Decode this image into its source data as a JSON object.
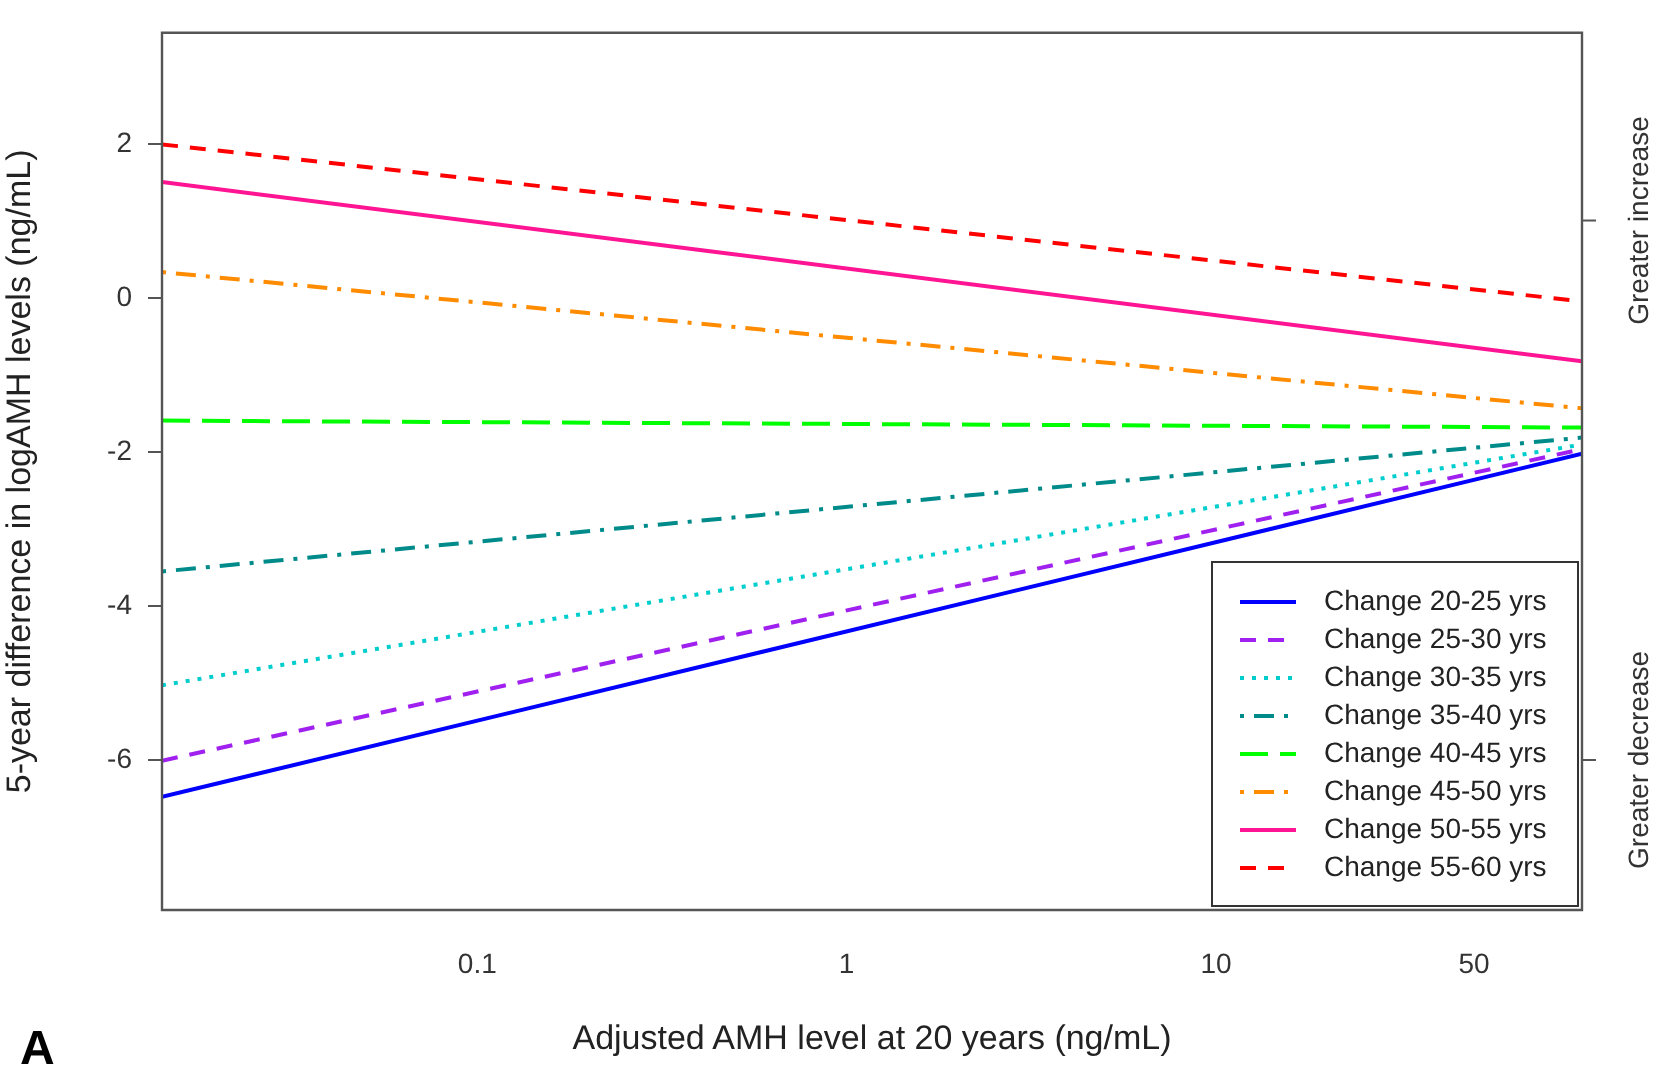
{
  "chart_data": {
    "type": "line",
    "xlabel": "Adjusted AMH level at 20 years (ng/mL)",
    "ylabel": "5-year difference in logAMH levels (ng/mL)",
    "x": [
      0.014,
      98
    ],
    "log": "x",
    "xlim": [
      0.014,
      98
    ],
    "xticks": [
      0.1,
      1,
      10,
      50
    ],
    "ylim": [
      -7.95,
      3.45
    ],
    "yticks": [
      -6,
      -4,
      -2,
      0,
      2
    ],
    "grid": false,
    "legend": "bottom right",
    "marker": "none",
    "series": [
      {
        "name": "Change 20-25 yrs",
        "color": "#0000ff",
        "line_style": "solid",
        "values": [
          -6.48,
          -2.02
        ]
      },
      {
        "name": "Change 25-30 yrs",
        "color": "#a020f0",
        "line_style": "dashed",
        "values": [
          -6.01,
          -1.96
        ]
      },
      {
        "name": "Change 30-35 yrs",
        "color": "#00cdcd",
        "line_style": "dotted",
        "values": [
          -5.03,
          -1.9
        ]
      },
      {
        "name": "Change 35-40 yrs",
        "color": "#008b8b",
        "line_style": "dashdot",
        "values": [
          -3.55,
          -1.81
        ]
      },
      {
        "name": "Change 40-45 yrs",
        "color": "#00ff00",
        "line_style": "longdash",
        "values": [
          -1.59,
          -1.68
        ]
      },
      {
        "name": "Change 45-50 yrs",
        "color": "#ff8c00",
        "line_style": "dashdot",
        "values": [
          0.34,
          -1.43
        ]
      },
      {
        "name": "Change 50-55 yrs",
        "color": "#ff1493",
        "line_style": "solid",
        "values": [
          1.51,
          -0.82
        ]
      },
      {
        "name": "Change 55-60 yrs",
        "color": "#ff0000",
        "line_style": "dashed",
        "values": [
          2.0,
          -0.04
        ]
      }
    ],
    "annotations": [
      "Greater increase",
      "Greater decrease",
      "A"
    ]
  }
}
